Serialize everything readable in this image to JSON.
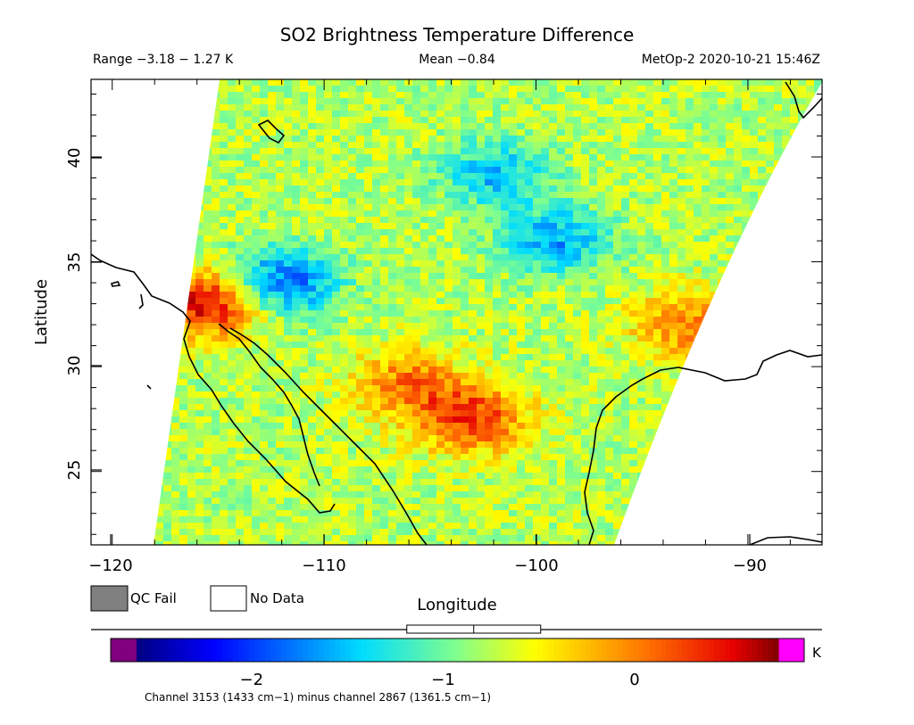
{
  "title": "SO2 Brightness Temperature Difference",
  "range_text": "Range −3.18 − 1.27 K",
  "mean_text": "Mean −0.84",
  "sensor_text": "MetOp-2 2020-10-21 15:46Z",
  "colorbar_unit": "K",
  "colorbar_caption": "Channel 3153 (1433 cm−1) minus channel 2867 (1361.5 cm−1)",
  "legend": {
    "qc_fail": "QC Fail",
    "no_data": "No Data"
  },
  "colors": {
    "qc_fail": "#808080",
    "no_data": "#ffffff",
    "below_range": "#800080",
    "above_range": "#ff00ff"
  },
  "chart_data": {
    "type": "heatmap",
    "title": "SO2 Brightness Temperature Difference",
    "xlabel": "Longitude",
    "ylabel": "Latitude",
    "xlim": [
      -121,
      -86.5
    ],
    "ylim": [
      21.5,
      43.7
    ],
    "x_ticks": [
      -120,
      -110,
      -100,
      -90
    ],
    "x_tick_labels": [
      "−120",
      "−110",
      "−100",
      "−90"
    ],
    "y_ticks": [
      25,
      30,
      35,
      40
    ],
    "y_tick_labels": [
      "25",
      "30",
      "35",
      "40"
    ],
    "value_range": [
      -3.18,
      1.27
    ],
    "mean": -0.84,
    "units": "K",
    "colorbar": {
      "range": [
        -2.6,
        0.75
      ],
      "ticks": [
        -2,
        -1,
        0
      ],
      "tick_labels": [
        "−2",
        "−1",
        "0"
      ],
      "mean_marker": -0.84
    },
    "features": [
      {
        "description": "warm anomaly",
        "lon": -115.5,
        "lat": 33,
        "value": 0.6
      },
      {
        "description": "warm anomaly",
        "lon": -103,
        "lat": 27.5,
        "value": 0.3
      },
      {
        "description": "warm anomaly",
        "lon": -106,
        "lat": 29.2,
        "value": 0.0
      },
      {
        "description": "warm anomaly",
        "lon": -93,
        "lat": 32,
        "value": 0.0
      },
      {
        "description": "mixed band",
        "lon": -102,
        "lat": 39.2,
        "value": -1.5
      },
      {
        "description": "cold anomaly",
        "lon": -112,
        "lat": 34,
        "value": -1.9
      },
      {
        "description": "cold anomaly",
        "lon": -99,
        "lat": 36,
        "value": -1.6
      }
    ]
  }
}
